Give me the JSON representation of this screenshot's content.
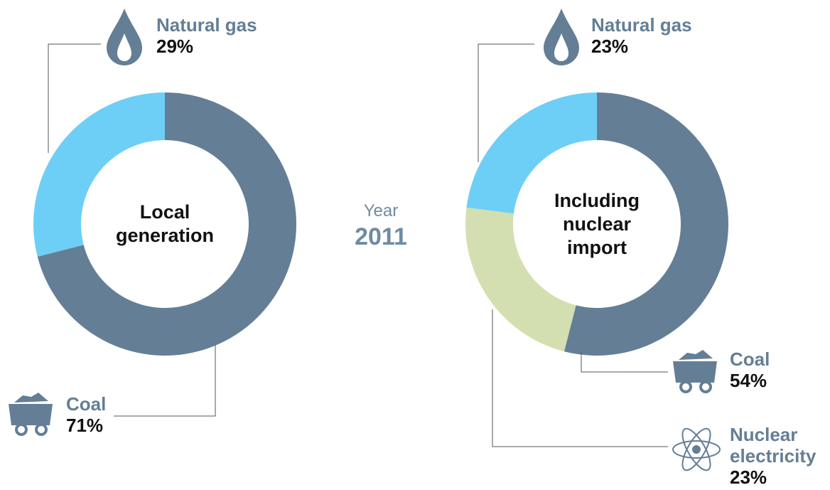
{
  "chart_data": [
    {
      "type": "pie",
      "center_label": "Local generation",
      "categories": [
        "Coal",
        "Natural gas"
      ],
      "values": [
        71,
        29
      ],
      "value_labels": [
        "71%",
        "29%"
      ],
      "colors": [
        "#647e96",
        "#6dcff6"
      ]
    },
    {
      "type": "pie",
      "center_label": "Including nuclear import",
      "categories": [
        "Coal",
        "Nuclear electricity",
        "Natural gas"
      ],
      "values": [
        54,
        23,
        23
      ],
      "value_labels": [
        "54%",
        "23%",
        "23%"
      ],
      "colors": [
        "#647e96",
        "#d3dfb0",
        "#6dcff6"
      ]
    }
  ],
  "year_label": "Year",
  "year": 2011
}
